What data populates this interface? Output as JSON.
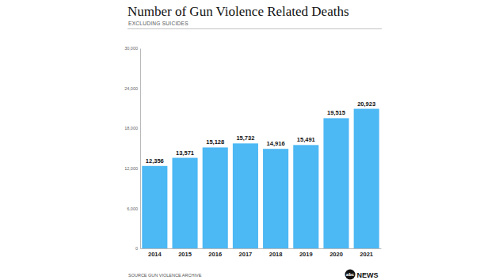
{
  "chart_data": {
    "type": "bar",
    "title": "Number of Gun Violence Related Deaths",
    "subtitle": "EXCLUDING SUICIDES",
    "categories": [
      "2014",
      "2015",
      "2016",
      "2017",
      "2018",
      "2019",
      "2020",
      "2021"
    ],
    "values": [
      12356,
      13571,
      15128,
      15732,
      14916,
      15491,
      19515,
      20923
    ],
    "value_labels": [
      "12,356",
      "13,571",
      "15,128",
      "15,732",
      "14,916",
      "15,491",
      "19,515",
      "20,923"
    ],
    "color": "#4cb8f4",
    "ylim": [
      0,
      30000
    ],
    "yticks": [
      0,
      {
        "value": 6000,
        "label": "6,000"
      },
      {
        "value": 12000,
        "label": "12,000"
      },
      {
        "value": 18000,
        "label": "18,000"
      },
      {
        "value": 24000,
        "label": "24,000"
      },
      {
        "value": 30000,
        "label": "30,000"
      }
    ],
    "grid": false,
    "data_labels": true,
    "source": "SOURCE GUN VIOLENCE ARCHIVE",
    "logo": [
      "abc",
      "NEWS"
    ]
  }
}
